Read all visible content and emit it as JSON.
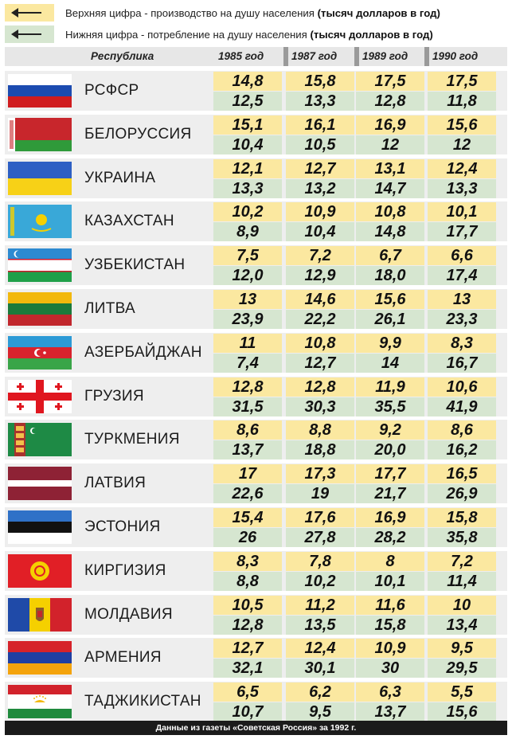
{
  "legend": {
    "top": {
      "text": "Верхняя цифра - производство на душу населения ",
      "bold": "(тысяч долларов в год)",
      "color": "#fbe8a0"
    },
    "bottom": {
      "text": "Нижняя цифра - потребление на душу населения ",
      "bold": "(тысяч долларов в год)",
      "color": "#d6e6d0"
    }
  },
  "chart_data": {
    "type": "table",
    "columns": [
      "Республика",
      "1985 год",
      "1987 год",
      "1989 год",
      "1990 год"
    ],
    "rows": [
      {
        "name": "РСФСР",
        "flag": "russia",
        "production": [
          "14,8",
          "15,8",
          "17,5",
          "17,5"
        ],
        "consumption": [
          "12,5",
          "13,3",
          "12,8",
          "11,8"
        ]
      },
      {
        "name": "БЕЛОРУССИЯ",
        "flag": "belarus",
        "production": [
          "15,1",
          "16,1",
          "16,9",
          "15,6"
        ],
        "consumption": [
          "10,4",
          "10,5",
          "12",
          "12"
        ]
      },
      {
        "name": "УКРАИНА",
        "flag": "ukraine",
        "production": [
          "12,1",
          "12,7",
          "13,1",
          "12,4"
        ],
        "consumption": [
          "13,3",
          "13,2",
          "14,7",
          "13,3"
        ]
      },
      {
        "name": "КАЗАХСТАН",
        "flag": "kazakhstan",
        "production": [
          "10,2",
          "10,9",
          "10,8",
          "10,1"
        ],
        "consumption": [
          "8,9",
          "10,4",
          "14,8",
          "17,7"
        ]
      },
      {
        "name": "УЗБЕКИСТАН",
        "flag": "uzbekistan",
        "production": [
          "7,5",
          "7,2",
          "6,7",
          "6,6"
        ],
        "consumption": [
          "12,0",
          "12,9",
          "18,0",
          "17,4"
        ]
      },
      {
        "name": "ЛИТВА",
        "flag": "lithuania",
        "production": [
          "13",
          "14,6",
          "15,6",
          "13"
        ],
        "consumption": [
          "23,9",
          "22,2",
          "26,1",
          "23,3"
        ]
      },
      {
        "name": "АЗЕРБАЙДЖАН",
        "flag": "azerbaijan",
        "production": [
          "11",
          "10,8",
          "9,9",
          "8,3"
        ],
        "consumption": [
          "7,4",
          "12,7",
          "14",
          "16,7"
        ]
      },
      {
        "name": "ГРУЗИЯ",
        "flag": "georgia",
        "production": [
          "12,8",
          "12,8",
          "11,9",
          "10,6"
        ],
        "consumption": [
          "31,5",
          "30,3",
          "35,5",
          "41,9"
        ]
      },
      {
        "name": "ТУРКМЕНИЯ",
        "flag": "turkmenistan",
        "production": [
          "8,6",
          "8,8",
          "9,2",
          "8,6"
        ],
        "consumption": [
          "13,7",
          "18,8",
          "20,0",
          "16,2"
        ]
      },
      {
        "name": "ЛАТВИЯ",
        "flag": "latvia",
        "production": [
          "17",
          "17,3",
          "17,7",
          "16,5"
        ],
        "consumption": [
          "22,6",
          "19",
          "21,7",
          "26,9"
        ]
      },
      {
        "name": "ЭСТОНИЯ",
        "flag": "estonia",
        "production": [
          "15,4",
          "17,6",
          "16,9",
          "15,8"
        ],
        "consumption": [
          "26",
          "27,8",
          "28,2",
          "35,8"
        ]
      },
      {
        "name": "КИРГИЗИЯ",
        "flag": "kyrgyzstan",
        "production": [
          "8,3",
          "7,8",
          "8",
          "7,2"
        ],
        "consumption": [
          "8,8",
          "10,2",
          "10,1",
          "11,4"
        ]
      },
      {
        "name": "МОЛДАВИЯ",
        "flag": "moldova",
        "production": [
          "10,5",
          "11,2",
          "11,6",
          "10"
        ],
        "consumption": [
          "12,8",
          "13,5",
          "15,8",
          "13,4"
        ]
      },
      {
        "name": "АРМЕНИЯ",
        "flag": "armenia",
        "production": [
          "12,7",
          "12,4",
          "10,9",
          "9,5"
        ],
        "consumption": [
          "32,1",
          "30,1",
          "30",
          "29,5"
        ]
      },
      {
        "name": "ТАДЖИКИСТАН",
        "flag": "tajikistan",
        "production": [
          "6,5",
          "6,2",
          "6,3",
          "5,5"
        ],
        "consumption": [
          "10,7",
          "9,5",
          "13,7",
          "15,6"
        ]
      }
    ]
  },
  "footer": "Данные из газеты «Советская Россия» за 1992 г."
}
